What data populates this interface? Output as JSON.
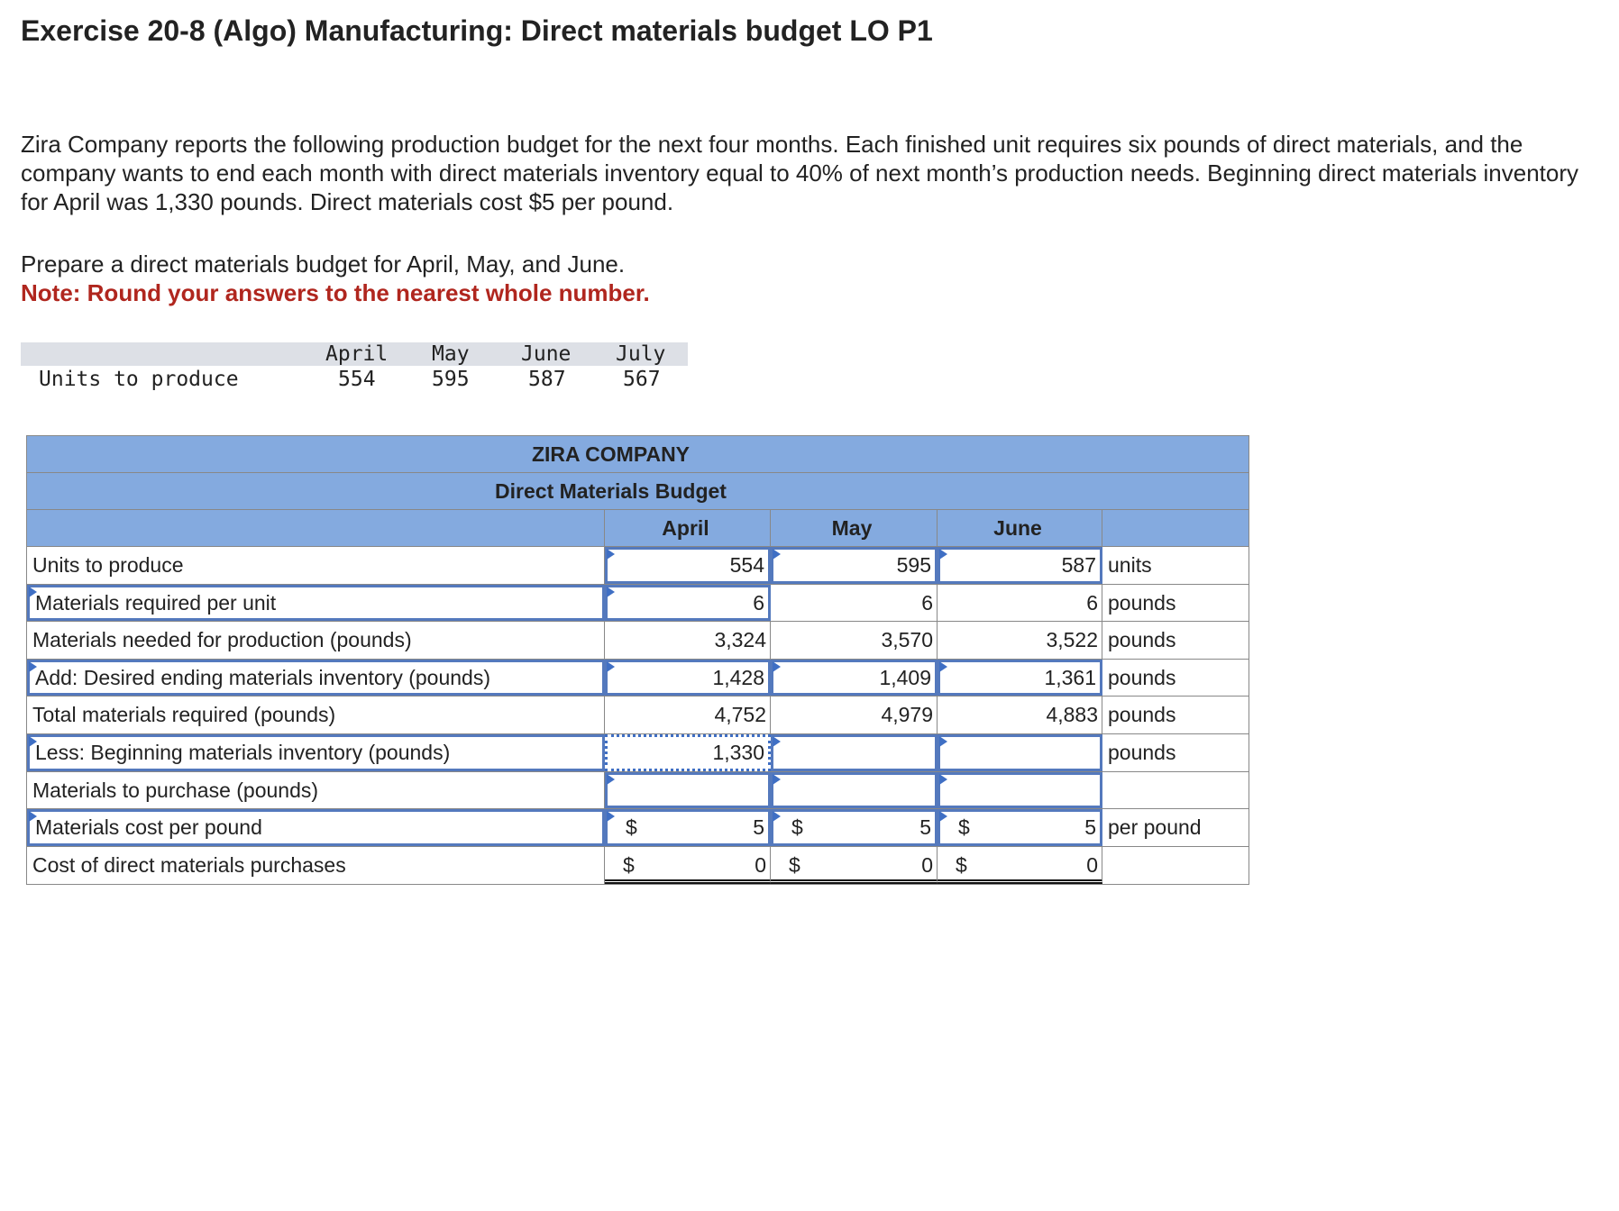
{
  "title": "Exercise 20-8 (Algo) Manufacturing: Direct materials budget LO P1",
  "intro": "Zira Company reports the following production budget for the next four months. Each finished unit requires six pounds of direct materials, and the company wants to end each month with direct materials inventory equal to 40% of next month’s production needs. Beginning direct materials inventory for April was 1,330 pounds. Direct materials cost $5 per pound.",
  "instruction": "Prepare a direct materials budget for April, May, and June.",
  "note": "Note: Round your answers to the nearest whole number.",
  "given": {
    "row_label": "Units to produce",
    "months": [
      "April",
      "May",
      "June",
      "July"
    ],
    "values": [
      "554",
      "595",
      "587",
      "567"
    ]
  },
  "budget": {
    "company": "ZIRA COMPANY",
    "title": "Direct Materials Budget",
    "months": [
      "April",
      "May",
      "June"
    ],
    "colors": {
      "header": "#84aadf",
      "input_border": "#5479bd"
    },
    "rows": [
      {
        "label": "Units to produce",
        "label_input": false,
        "cells": [
          {
            "v": "554",
            "input": true
          },
          {
            "v": "595",
            "input": true
          },
          {
            "v": "587",
            "input": true
          }
        ],
        "unit": "units"
      },
      {
        "label": "Materials required per unit",
        "label_input": true,
        "cells": [
          {
            "v": "6",
            "input": true
          },
          {
            "v": "6"
          },
          {
            "v": "6"
          }
        ],
        "unit": "pounds"
      },
      {
        "label": "Materials needed for production (pounds)",
        "label_input": false,
        "cells": [
          {
            "v": "3,324"
          },
          {
            "v": "3,570"
          },
          {
            "v": "3,522"
          }
        ],
        "unit": "pounds"
      },
      {
        "label": "Add: Desired ending materials inventory (pounds)",
        "label_input": true,
        "cells": [
          {
            "v": "1,428",
            "input": true
          },
          {
            "v": "1,409",
            "input": true
          },
          {
            "v": "1,361",
            "input": true
          }
        ],
        "unit": "pounds"
      },
      {
        "label": "Total materials required (pounds)",
        "label_input": false,
        "cells": [
          {
            "v": "4,752"
          },
          {
            "v": "4,979"
          },
          {
            "v": "4,883"
          }
        ],
        "unit": "pounds"
      },
      {
        "label": "Less: Beginning materials inventory (pounds)",
        "label_input": true,
        "cells": [
          {
            "v": "1,330",
            "focus": true
          },
          {
            "v": "",
            "input": true
          },
          {
            "v": "",
            "input": true
          }
        ],
        "unit": "pounds"
      },
      {
        "label": "Materials to purchase (pounds)",
        "label_input": false,
        "cells": [
          {
            "v": "",
            "input": true
          },
          {
            "v": "",
            "input": true
          },
          {
            "v": "",
            "input": true
          }
        ],
        "unit": ""
      },
      {
        "label": "Materials cost per pound",
        "label_input": true,
        "cells": [
          {
            "v": "5",
            "input": true,
            "dollar": "$"
          },
          {
            "v": "5",
            "input": true,
            "dollar": "$"
          },
          {
            "v": "5",
            "input": true,
            "dollar": "$"
          }
        ],
        "unit": "per pound"
      },
      {
        "label": "Cost of direct materials purchases",
        "label_input": false,
        "cells": [
          {
            "v": "0",
            "dollar": "$",
            "total": true
          },
          {
            "v": "0",
            "dollar": "$",
            "total": true
          },
          {
            "v": "0",
            "dollar": "$",
            "total": true
          }
        ],
        "unit": ""
      }
    ]
  }
}
